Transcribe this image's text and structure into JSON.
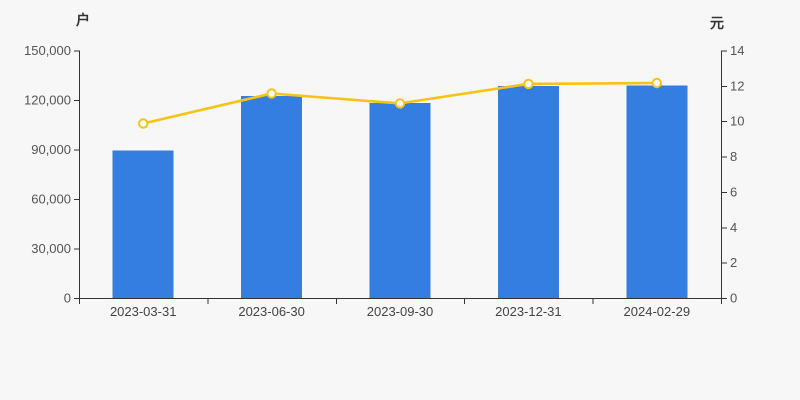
{
  "chart_data": {
    "type": "bar+line",
    "categories": [
      "2023-03-31",
      "2023-06-30",
      "2023-09-30",
      "2023-12-31",
      "2024-02-29"
    ],
    "series": [
      {
        "id": "bar-series",
        "type": "bar",
        "yaxis": "left",
        "unit": "户",
        "color": "#347ee2",
        "values": [
          89500,
          122400,
          118300,
          128500,
          128900
        ]
      },
      {
        "id": "line-series",
        "type": "line",
        "yaxis": "right",
        "unit": "元",
        "color": "#f7c314",
        "marker": "hollow-circle",
        "marker_fill": "#ffffff",
        "values": [
          9.87,
          11.57,
          11.01,
          12.11,
          12.16
        ]
      }
    ],
    "left_axis": {
      "name": "户",
      "min": 0,
      "max": 150000,
      "tick_labels": [
        "0",
        "30,000",
        "60,000",
        "90,000",
        "120,000",
        "150,000"
      ]
    },
    "right_axis": {
      "name": "元",
      "min": 0,
      "max": 14,
      "tick_labels": [
        "0",
        "2",
        "4",
        "6",
        "8",
        "10",
        "12",
        "14"
      ]
    },
    "x_axis": {
      "labels": [
        "2023-03-31",
        "2023-06-30",
        "2023-09-30",
        "2023-12-31",
        "2024-02-29"
      ]
    },
    "grid": false,
    "legend": "none",
    "background": "#f7f7f7",
    "axis_color": "#333333",
    "tick_label_color": "#555555"
  }
}
